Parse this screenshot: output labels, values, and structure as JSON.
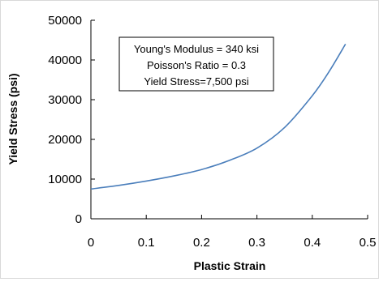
{
  "chart_data": {
    "type": "line",
    "title": "",
    "xlabel": "Plastic Strain",
    "ylabel": "Yield Stress (psi)",
    "xlim": [
      0,
      0.5
    ],
    "ylim": [
      0,
      50000
    ],
    "x_ticks": [
      "0",
      "0.1",
      "0.2",
      "0.3",
      "0.4",
      "0.5"
    ],
    "y_ticks": [
      "0",
      "10000",
      "20000",
      "30000",
      "40000",
      "50000"
    ],
    "grid": false,
    "legend": "none",
    "series": [
      {
        "color": "#4a7ebb",
        "x": [
          0,
          0.05,
          0.1,
          0.15,
          0.2,
          0.25,
          0.3,
          0.35,
          0.4,
          0.43,
          0.46
        ],
        "y": [
          7500,
          8400,
          9500,
          10800,
          12400,
          14700,
          17800,
          23000,
          31000,
          37000,
          44000
        ]
      }
    ],
    "annotation": {
      "lines": [
        "Young's Modulus = 340 ksi",
        "Poisson's Ratio = 0.3",
        "Yield Stress=7,500 psi"
      ]
    }
  }
}
